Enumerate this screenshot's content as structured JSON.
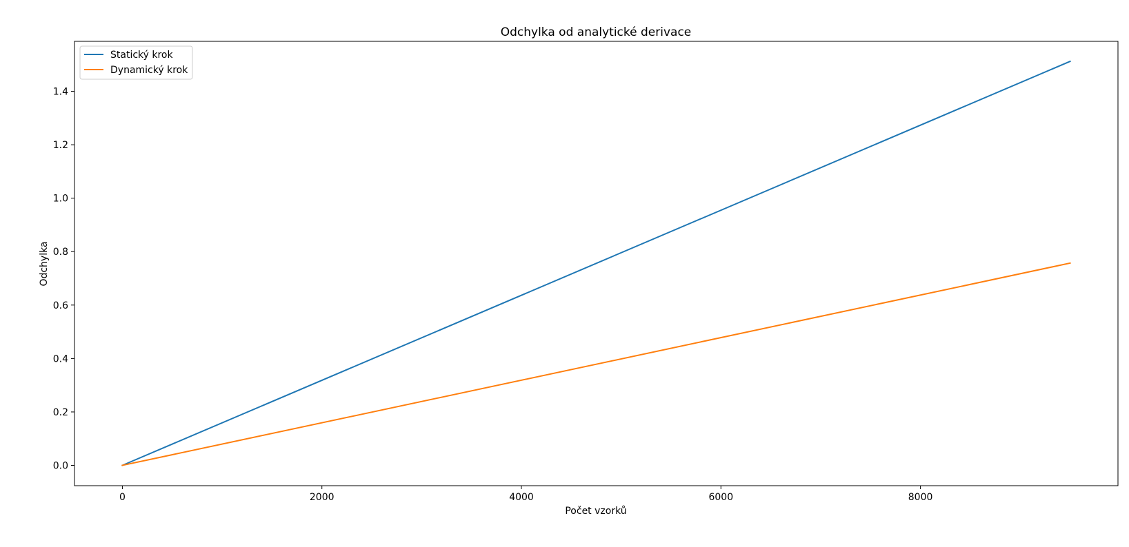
{
  "chart_data": {
    "type": "line",
    "title": "Odchylka od analytické derivace",
    "xlabel": "Počet vzorků",
    "ylabel": "Odchylka",
    "xlim": [
      -480,
      9980
    ],
    "ylim": [
      -0.076,
      1.587
    ],
    "x_ticks": [
      0,
      2000,
      4000,
      6000,
      8000
    ],
    "x_tick_labels": [
      "0",
      "2000",
      "4000",
      "6000",
      "8000"
    ],
    "y_ticks": [
      0.0,
      0.2,
      0.4,
      0.6,
      0.8,
      1.0,
      1.2,
      1.4
    ],
    "y_tick_labels": [
      "0.0",
      "0.2",
      "0.4",
      "0.6",
      "0.8",
      "1.0",
      "1.2",
      "1.4"
    ],
    "grid": false,
    "legend_position": "top-left",
    "series": [
      {
        "name": "Statický krok",
        "color": "#1f77b4",
        "x": [
          0,
          9500
        ],
        "y": [
          0.0,
          1.512
        ]
      },
      {
        "name": "Dynamický krok",
        "color": "#ff7f0e",
        "x": [
          0,
          9500
        ],
        "y": [
          0.0,
          0.757
        ]
      }
    ]
  }
}
